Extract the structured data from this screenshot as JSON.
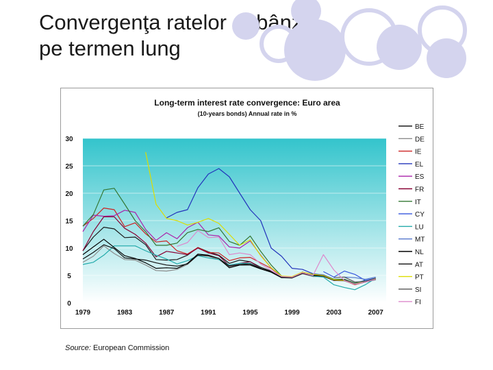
{
  "slide": {
    "title": "Convergenţa ratelor dobânzii pe termen lung",
    "source_label": "Source:",
    "source_text": " European Commission",
    "decor_color": "#d4d4ee"
  },
  "chart_data": {
    "type": "line",
    "title": "Long-term interest rate convergence: Euro area",
    "subtitle": "(10-years bonds) Annual rate in %",
    "xlabel": "",
    "ylabel": "",
    "xlim": [
      1979,
      2008
    ],
    "ylim": [
      0,
      30
    ],
    "y_ticks": [
      0,
      5,
      10,
      15,
      20,
      25,
      30
    ],
    "x_ticks": [
      1979,
      1983,
      1987,
      1991,
      1995,
      1999,
      2003,
      2007
    ],
    "grid": true,
    "legend_position": "right",
    "background_gradient": [
      "#33c4cc",
      "#ffffff"
    ],
    "series": [
      {
        "name": "BE",
        "color": "#1a1a1a",
        "x": [
          1979,
          1980,
          1981,
          1982,
          1983,
          1984,
          1985,
          1986,
          1987,
          1988,
          1989,
          1990,
          1991,
          1992,
          1993,
          1994,
          1995,
          1996,
          1997,
          1998,
          1999,
          2000,
          2001,
          2002,
          2003,
          2004,
          2005,
          2006,
          2007
        ],
        "y": [
          9.5,
          12.0,
          13.8,
          13.5,
          11.9,
          12.0,
          10.6,
          7.9,
          7.8,
          7.9,
          8.7,
          10.1,
          9.3,
          8.7,
          7.2,
          7.8,
          7.5,
          6.5,
          5.8,
          4.8,
          4.7,
          5.6,
          5.1,
          5.0,
          4.2,
          4.2,
          3.4,
          3.8,
          4.3
        ]
      },
      {
        "name": "DE",
        "color": "#8c8c8c",
        "x": [
          1979,
          1980,
          1981,
          1982,
          1983,
          1984,
          1985,
          1986,
          1987,
          1988,
          1989,
          1990,
          1991,
          1992,
          1993,
          1994,
          1995,
          1996,
          1997,
          1998,
          1999,
          2000,
          2001,
          2002,
          2003,
          2004,
          2005,
          2006,
          2007
        ],
        "y": [
          7.4,
          8.5,
          10.4,
          9.0,
          7.9,
          7.8,
          6.9,
          5.9,
          5.8,
          6.1,
          7.0,
          8.7,
          8.5,
          7.9,
          6.5,
          6.9,
          6.9,
          6.2,
          5.6,
          4.6,
          4.5,
          5.3,
          4.8,
          4.8,
          4.1,
          4.0,
          3.4,
          3.8,
          4.2
        ]
      },
      {
        "name": "IE",
        "color": "#cc2222",
        "x": [
          1979,
          1980,
          1981,
          1982,
          1983,
          1984,
          1985,
          1986,
          1987,
          1988,
          1989,
          1990,
          1991,
          1992,
          1993,
          1994,
          1995,
          1996,
          1997,
          1998,
          1999,
          2000,
          2001,
          2002,
          2003,
          2004,
          2005,
          2006,
          2007
        ],
        "y": [
          14.0,
          15.4,
          17.3,
          17.0,
          13.9,
          14.6,
          12.6,
          11.1,
          11.3,
          9.5,
          8.9,
          10.1,
          9.2,
          9.1,
          7.7,
          8.2,
          8.3,
          7.3,
          6.3,
          4.8,
          4.7,
          5.5,
          5.0,
          5.0,
          4.1,
          4.1,
          3.3,
          3.8,
          4.3
        ]
      },
      {
        "name": "EL",
        "color": "#2233bb",
        "x": [
          1979,
          1980,
          1981,
          1982,
          1983,
          1984,
          1985,
          1986,
          1987,
          1988,
          1989,
          1990,
          1991,
          1992,
          1993,
          1994,
          1995,
          1996,
          1997,
          1998,
          1999,
          2000,
          2001,
          2002,
          2003,
          2004,
          2005,
          2006,
          2007
        ],
        "y": [
          null,
          null,
          null,
          null,
          null,
          null,
          null,
          null,
          15.5,
          16.5,
          17.0,
          21.0,
          23.5,
          24.5,
          23.0,
          20.0,
          17.0,
          15.0,
          10.0,
          8.5,
          6.3,
          6.1,
          5.3,
          5.1,
          4.3,
          4.3,
          3.6,
          4.1,
          4.5
        ]
      },
      {
        "name": "ES",
        "color": "#aa22aa",
        "x": [
          1979,
          1980,
          1981,
          1982,
          1983,
          1984,
          1985,
          1986,
          1987,
          1988,
          1989,
          1990,
          1991,
          1992,
          1993,
          1994,
          1995,
          1996,
          1997,
          1998,
          1999,
          2000,
          2001,
          2002,
          2003,
          2004,
          2005,
          2006,
          2007
        ],
        "y": [
          13.0,
          16.0,
          15.8,
          15.9,
          16.9,
          16.5,
          13.4,
          11.4,
          12.8,
          11.7,
          13.7,
          14.7,
          12.4,
          12.2,
          10.2,
          10.0,
          11.3,
          8.7,
          6.4,
          4.8,
          4.7,
          5.5,
          5.1,
          5.0,
          4.1,
          4.1,
          3.4,
          3.8,
          4.3
        ]
      },
      {
        "name": "FR",
        "color": "#880033",
        "x": [
          1979,
          1980,
          1981,
          1982,
          1983,
          1984,
          1985,
          1986,
          1987,
          1988,
          1989,
          1990,
          1991,
          1992,
          1993,
          1994,
          1995,
          1996,
          1997,
          1998,
          1999,
          2000,
          2001,
          2002,
          2003,
          2004,
          2005,
          2006,
          2007
        ],
        "y": [
          9.5,
          13.0,
          15.7,
          15.7,
          13.6,
          12.5,
          10.9,
          8.4,
          9.4,
          9.1,
          8.8,
          10.0,
          9.1,
          8.6,
          6.8,
          7.2,
          7.5,
          6.3,
          5.6,
          4.7,
          4.6,
          5.4,
          4.9,
          4.9,
          4.1,
          4.1,
          3.4,
          3.8,
          4.3
        ]
      },
      {
        "name": "IT",
        "color": "#337733",
        "x": [
          1979,
          1980,
          1981,
          1982,
          1983,
          1984,
          1985,
          1986,
          1987,
          1988,
          1989,
          1990,
          1991,
          1992,
          1993,
          1994,
          1995,
          1996,
          1997,
          1998,
          1999,
          2000,
          2001,
          2002,
          2003,
          2004,
          2005,
          2006,
          2007
        ],
        "y": [
          14.0,
          16.1,
          20.6,
          20.9,
          18.0,
          15.0,
          13.0,
          10.5,
          10.5,
          10.9,
          12.8,
          13.4,
          13.0,
          13.7,
          11.2,
          10.5,
          12.2,
          9.4,
          6.9,
          4.9,
          4.7,
          5.6,
          5.2,
          5.0,
          4.3,
          4.3,
          3.6,
          4.0,
          4.5
        ]
      },
      {
        "name": "CY",
        "color": "#3355dd",
        "x": [
          1979,
          1980,
          1981,
          1982,
          1983,
          1984,
          1985,
          1986,
          1987,
          1988,
          1989,
          1990,
          1991,
          1992,
          1993,
          1994,
          1995,
          1996,
          1997,
          1998,
          1999,
          2000,
          2001,
          2002,
          2003,
          2004,
          2005,
          2006,
          2007
        ],
        "y": [
          null,
          null,
          null,
          null,
          null,
          null,
          null,
          null,
          null,
          null,
          null,
          null,
          null,
          null,
          null,
          null,
          null,
          null,
          null,
          null,
          null,
          null,
          null,
          5.7,
          4.7,
          5.8,
          5.2,
          4.1,
          4.5
        ]
      },
      {
        "name": "LU",
        "color": "#22aaaa",
        "x": [
          1979,
          1980,
          1981,
          1982,
          1983,
          1984,
          1985,
          1986,
          1987,
          1988,
          1989,
          1990,
          1991,
          1992,
          1993,
          1994,
          1995,
          1996,
          1997,
          1998,
          1999,
          2000,
          2001,
          2002,
          2003,
          2004,
          2005,
          2006,
          2007
        ],
        "y": [
          7.0,
          7.4,
          8.7,
          10.4,
          10.4,
          10.4,
          9.5,
          8.7,
          8.0,
          7.1,
          7.7,
          8.6,
          8.2,
          7.9,
          6.9,
          7.2,
          7.2,
          6.3,
          5.6,
          4.7,
          4.7,
          5.5,
          4.9,
          4.7,
          3.3,
          2.8,
          2.4,
          3.3,
          4.5
        ]
      },
      {
        "name": "MT",
        "color": "#5577cc",
        "x": [
          1979,
          1980,
          1981,
          1982,
          1983,
          1984,
          1985,
          1986,
          1987,
          1988,
          1989,
          1990,
          1991,
          1992,
          1993,
          1994,
          1995,
          1996,
          1997,
          1998,
          1999,
          2000,
          2001,
          2002,
          2003,
          2004,
          2005,
          2006,
          2007
        ],
        "y": [
          null,
          null,
          null,
          null,
          null,
          null,
          null,
          null,
          null,
          null,
          null,
          null,
          null,
          null,
          null,
          null,
          null,
          null,
          null,
          null,
          null,
          null,
          null,
          null,
          null,
          4.7,
          4.6,
          4.3,
          4.7
        ]
      },
      {
        "name": "NL",
        "color": "#000000",
        "x": [
          1979,
          1980,
          1981,
          1982,
          1983,
          1984,
          1985,
          1986,
          1987,
          1988,
          1989,
          1990,
          1991,
          1992,
          1993,
          1994,
          1995,
          1996,
          1997,
          1998,
          1999,
          2000,
          2001,
          2002,
          2003,
          2004,
          2005,
          2006,
          2007
        ],
        "y": [
          8.8,
          10.2,
          11.6,
          10.1,
          8.6,
          8.1,
          7.3,
          6.3,
          6.4,
          6.3,
          7.2,
          8.9,
          8.7,
          8.1,
          6.4,
          6.9,
          6.9,
          6.2,
          5.6,
          4.6,
          4.6,
          5.4,
          5.0,
          4.9,
          4.1,
          4.1,
          3.4,
          3.8,
          4.3
        ]
      },
      {
        "name": "AT",
        "color": "#111111",
        "x": [
          1979,
          1980,
          1981,
          1982,
          1983,
          1984,
          1985,
          1986,
          1987,
          1988,
          1989,
          1990,
          1991,
          1992,
          1993,
          1994,
          1995,
          1996,
          1997,
          1998,
          1999,
          2000,
          2001,
          2002,
          2003,
          2004,
          2005,
          2006,
          2007
        ],
        "y": [
          8.0,
          9.2,
          10.6,
          9.9,
          8.2,
          8.0,
          7.8,
          7.3,
          6.9,
          6.7,
          7.1,
          8.7,
          8.6,
          8.1,
          6.7,
          7.0,
          7.1,
          6.3,
          5.7,
          4.7,
          4.7,
          5.6,
          5.1,
          5.0,
          4.2,
          4.2,
          3.4,
          3.8,
          4.3
        ]
      },
      {
        "name": "PT",
        "color": "#dddd00",
        "x": [
          1979,
          1980,
          1981,
          1982,
          1983,
          1984,
          1985,
          1986,
          1987,
          1988,
          1989,
          1990,
          1991,
          1992,
          1993,
          1994,
          1995,
          1996,
          1997,
          1998,
          1999,
          2000,
          2001,
          2002,
          2003,
          2004,
          2005,
          2006,
          2007
        ],
        "y": [
          null,
          null,
          null,
          null,
          null,
          null,
          27.5,
          18.0,
          15.4,
          15.0,
          14.2,
          14.7,
          15.4,
          14.5,
          12.5,
          10.5,
          11.5,
          8.6,
          6.4,
          4.9,
          4.8,
          5.6,
          5.2,
          5.0,
          4.2,
          4.1,
          3.4,
          3.9,
          4.4
        ]
      },
      {
        "name": "SI",
        "color": "#555555",
        "x": [
          1979,
          1980,
          1981,
          1982,
          1983,
          1984,
          1985,
          1986,
          1987,
          1988,
          1989,
          1990,
          1991,
          1992,
          1993,
          1994,
          1995,
          1996,
          1997,
          1998,
          1999,
          2000,
          2001,
          2002,
          2003,
          2004,
          2005,
          2006,
          2007
        ],
        "y": [
          null,
          null,
          null,
          null,
          null,
          null,
          null,
          null,
          null,
          null,
          null,
          null,
          null,
          null,
          null,
          null,
          null,
          null,
          null,
          null,
          null,
          null,
          null,
          null,
          4.6,
          4.7,
          3.8,
          3.9,
          4.5
        ]
      },
      {
        "name": "FI",
        "color": "#dd88cc",
        "x": [
          1979,
          1980,
          1981,
          1982,
          1983,
          1984,
          1985,
          1986,
          1987,
          1988,
          1989,
          1990,
          1991,
          1992,
          1993,
          1994,
          1995,
          1996,
          1997,
          1998,
          1999,
          2000,
          2001,
          2002,
          2003,
          2004,
          2005,
          2006,
          2007
        ],
        "y": [
          null,
          null,
          null,
          null,
          null,
          null,
          null,
          null,
          null,
          10.3,
          11.0,
          13.2,
          11.9,
          12.0,
          8.8,
          9.1,
          8.8,
          7.1,
          5.9,
          4.8,
          4.7,
          5.5,
          5.0,
          8.8,
          6.0,
          4.1,
          3.4,
          3.8,
          4.3
        ]
      }
    ]
  }
}
